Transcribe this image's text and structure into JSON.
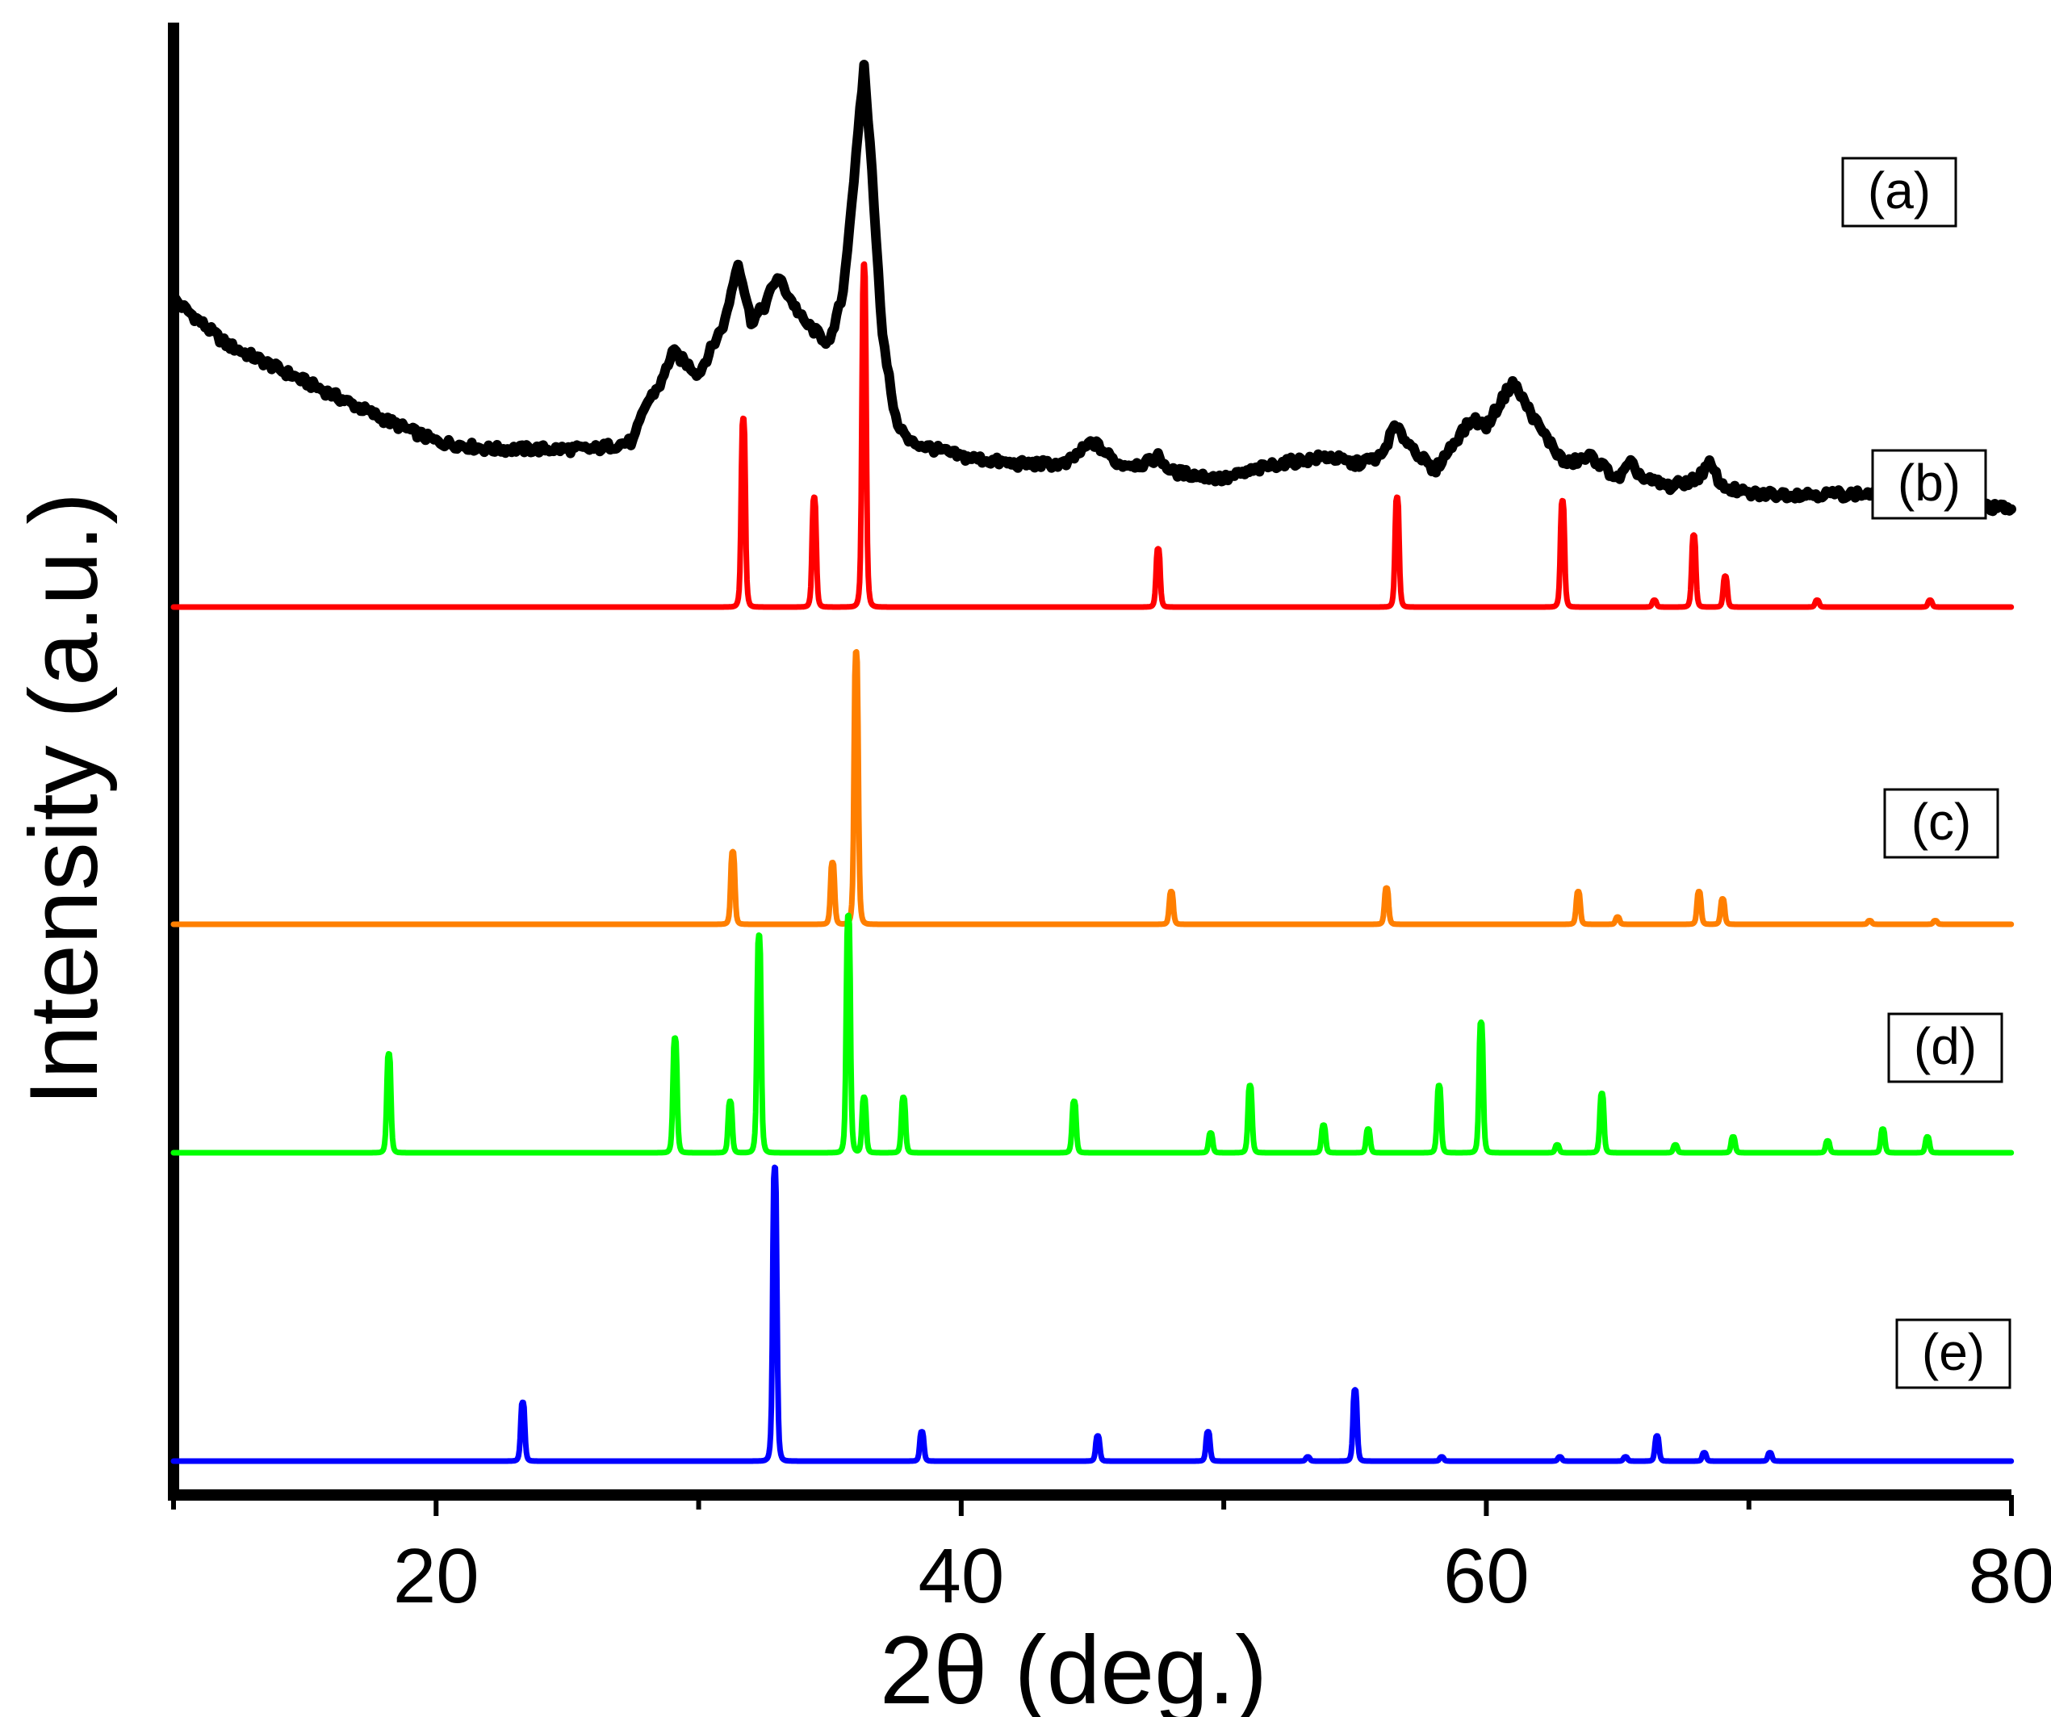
{
  "chart_data": {
    "type": "line",
    "title": "",
    "xlabel": "2θ (deg.)",
    "ylabel": "Intensity (a.u.)",
    "xlim": [
      10,
      80
    ],
    "xticks": [
      20,
      40,
      60,
      80
    ],
    "grid": false,
    "series": [
      {
        "name": "(a)",
        "color": "#000000",
        "x": [
          10,
          12,
          15,
          18,
          20,
          22,
          24,
          26,
          27.5,
          28,
          28.6,
          29,
          30,
          31,
          31.5,
          32,
          32.5,
          33,
          34,
          35,
          35.5,
          36,
          36.3,
          36.6,
          37,
          37.5,
          38,
          40,
          42,
          44,
          45,
          46,
          47,
          47.5,
          48,
          50,
          52,
          54,
          55,
          56,
          56.5,
          57,
          58,
          59,
          59.5,
          60,
          61,
          62,
          63,
          64,
          65,
          65.5,
          66,
          67,
          68,
          68.5,
          69,
          70,
          72,
          75,
          77,
          80
        ],
        "y": [
          0.69,
          0.63,
          0.58,
          0.53,
          0.5,
          0.49,
          0.49,
          0.49,
          0.5,
          0.55,
          0.58,
          0.62,
          0.59,
          0.66,
          0.74,
          0.66,
          0.68,
          0.72,
          0.66,
          0.63,
          0.7,
          0.88,
          1.0,
          0.86,
          0.64,
          0.53,
          0.5,
          0.48,
          0.47,
          0.47,
          0.5,
          0.47,
          0.47,
          0.48,
          0.46,
          0.45,
          0.47,
          0.48,
          0.47,
          0.48,
          0.52,
          0.5,
          0.46,
          0.51,
          0.53,
          0.52,
          0.58,
          0.52,
          0.47,
          0.48,
          0.45,
          0.47,
          0.45,
          0.44,
          0.45,
          0.47,
          0.44,
          0.43,
          0.43,
          0.43,
          0.42,
          0.41
        ]
      },
      {
        "name": "(b)",
        "color": "#ff0000",
        "baseline": 0,
        "peaks": [
          [
            31.7,
            0.55
          ],
          [
            34.4,
            0.32
          ],
          [
            36.3,
            1.0
          ],
          [
            47.5,
            0.17
          ],
          [
            56.6,
            0.32
          ],
          [
            62.9,
            0.31
          ],
          [
            66.4,
            0.02
          ],
          [
            67.9,
            0.21
          ],
          [
            69.1,
            0.09
          ],
          [
            72.6,
            0.02
          ],
          [
            76.9,
            0.02
          ]
        ]
      },
      {
        "name": "(c)",
        "color": "#ff7f00",
        "baseline": 0,
        "peaks": [
          [
            31.3,
            0.2
          ],
          [
            35.1,
            0.17
          ],
          [
            36.0,
            0.75
          ],
          [
            48.0,
            0.09
          ],
          [
            56.2,
            0.1
          ],
          [
            63.5,
            0.09
          ],
          [
            65.0,
            0.02
          ],
          [
            68.1,
            0.09
          ],
          [
            69.0,
            0.07
          ],
          [
            74.6,
            0.01
          ],
          [
            77.1,
            0.01
          ]
        ]
      },
      {
        "name": "(d)",
        "color": "#00ff00",
        "baseline": 0,
        "peaks": [
          [
            18.2,
            0.25
          ],
          [
            29.1,
            0.29
          ],
          [
            31.2,
            0.13
          ],
          [
            32.3,
            0.55
          ],
          [
            35.7,
            0.6
          ],
          [
            36.3,
            0.14
          ],
          [
            37.8,
            0.14
          ],
          [
            44.3,
            0.13
          ],
          [
            49.5,
            0.05
          ],
          [
            51.0,
            0.17
          ],
          [
            53.8,
            0.07
          ],
          [
            55.5,
            0.06
          ],
          [
            58.2,
            0.17
          ],
          [
            59.8,
            0.33
          ],
          [
            62.7,
            0.02
          ],
          [
            64.4,
            0.15
          ],
          [
            67.2,
            0.02
          ],
          [
            69.4,
            0.04
          ],
          [
            73.0,
            0.03
          ],
          [
            75.1,
            0.06
          ],
          [
            76.8,
            0.04
          ]
        ]
      },
      {
        "name": "(e)",
        "color": "#0000ff",
        "baseline": 0,
        "peaks": [
          [
            23.3,
            0.14
          ],
          [
            32.9,
            0.7
          ],
          [
            38.5,
            0.07
          ],
          [
            45.2,
            0.06
          ],
          [
            49.4,
            0.07
          ],
          [
            53.2,
            0.01
          ],
          [
            55.0,
            0.17
          ],
          [
            58.3,
            0.01
          ],
          [
            62.8,
            0.01
          ],
          [
            65.3,
            0.01
          ],
          [
            66.5,
            0.06
          ],
          [
            68.3,
            0.02
          ],
          [
            70.8,
            0.02
          ]
        ]
      }
    ],
    "annotations": [
      "(a)",
      "(b)",
      "(c)",
      "(d)",
      "(e)"
    ]
  }
}
